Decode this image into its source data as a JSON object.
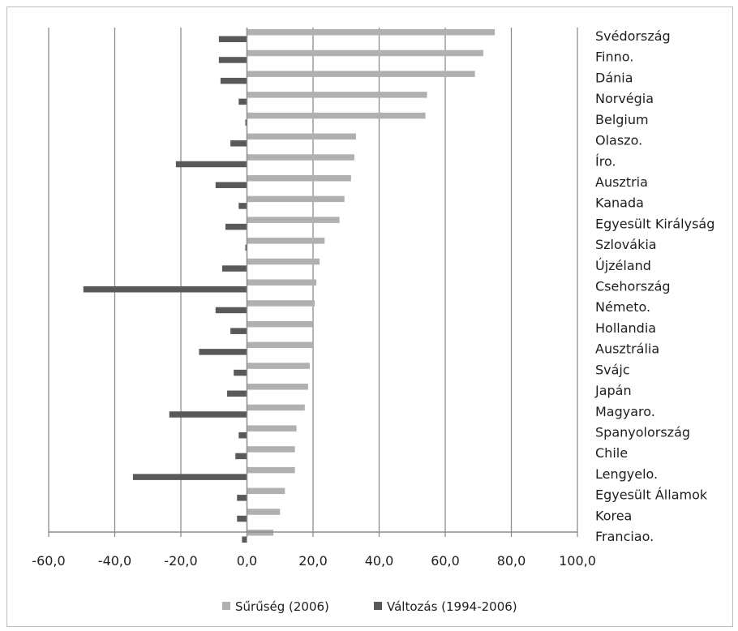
{
  "chart_data": {
    "type": "bar",
    "orientation": "horizontal",
    "categories": [
      "Svédország",
      "Finno.",
      "Dánia",
      "Norvégia",
      "Belgium",
      "Olaszo.",
      "Íro.",
      "Ausztria",
      "Kanada",
      "Egyesült Királyság",
      "Szlovákia",
      "Újzéland",
      "Csehország",
      "Németo.",
      "Hollandia",
      "Ausztrália",
      "Svájc",
      "Japán",
      "Magyaro.",
      "Spanyolország",
      "Chile",
      "Lengyelo.",
      "Egyesült Államok",
      "Korea",
      "Franciao."
    ],
    "series": [
      {
        "name": "Sűrűség (2006)",
        "color": "#b0b0b0",
        "values": [
          75.0,
          71.5,
          69.0,
          54.5,
          54.0,
          33.0,
          32.5,
          31.5,
          29.5,
          28.0,
          23.5,
          22.0,
          21.0,
          20.5,
          20.0,
          20.0,
          19.0,
          18.5,
          17.5,
          15.0,
          14.5,
          14.5,
          11.5,
          10.0,
          8.0
        ]
      },
      {
        "name": "Változás (1994-2006)",
        "color": "#595959",
        "values": [
          -8.5,
          -8.5,
          -8.0,
          -2.5,
          -0.5,
          -5.0,
          -21.5,
          -9.5,
          -2.5,
          -6.5,
          -0.5,
          -7.5,
          -49.5,
          -9.5,
          -5.0,
          -14.5,
          -4.0,
          -6.0,
          -23.5,
          -2.5,
          -3.5,
          -34.5,
          -3.0,
          -3.0,
          -1.5
        ]
      }
    ],
    "xlim": [
      -60,
      100
    ],
    "xticks": [
      "-60,0",
      "-40,0",
      "-20,0",
      "0,0",
      "20,0",
      "40,0",
      "60,0",
      "80,0",
      "100,0"
    ],
    "xtick_values": [
      -60,
      -40,
      -20,
      0,
      20,
      40,
      60,
      80,
      100
    ],
    "grid": "vertical",
    "legend": "bottom",
    "title": "",
    "xlabel": "",
    "ylabel": ""
  }
}
